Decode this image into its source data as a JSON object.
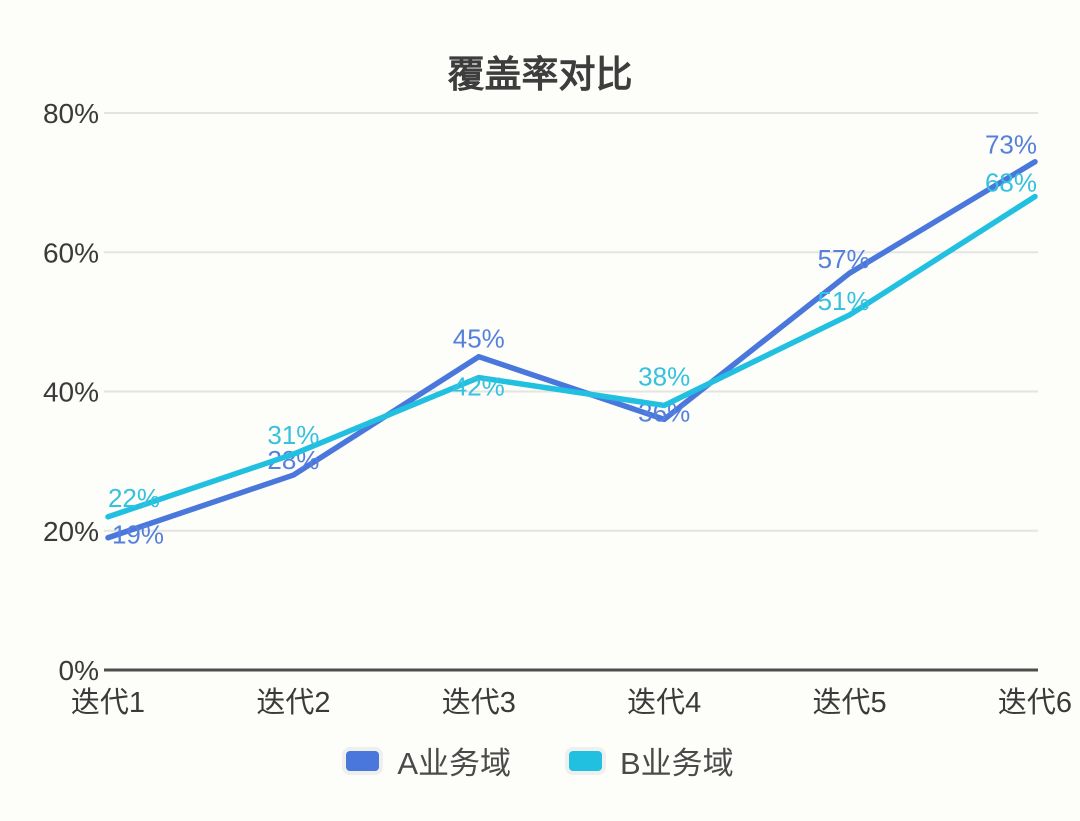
{
  "chart_data": {
    "type": "line",
    "title": "覆盖率对比",
    "categories": [
      "迭代1",
      "迭代2",
      "迭代3",
      "迭代4",
      "迭代5",
      "迭代6"
    ],
    "series": [
      {
        "name": "A业务域",
        "color": "#4A77DB",
        "values": [
          19,
          28,
          45,
          36,
          57,
          73
        ]
      },
      {
        "name": "B业务域",
        "color": "#22C0E0",
        "values": [
          22,
          31,
          42,
          38,
          51,
          68
        ]
      }
    ],
    "xlabel": "",
    "ylabel": "",
    "ylim": [
      0,
      80
    ],
    "y_tick_values": [
      0,
      20,
      40,
      60,
      80
    ],
    "y_tick_suffix": "%",
    "data_label_suffix": "%",
    "grid": "horizontal",
    "legend_position": "bottom"
  },
  "colors": {
    "background": "#FDFDF9",
    "title_text": "#3D3D3D",
    "axis_text": "#3A3A3A",
    "data_label_a": "#5580DC",
    "data_label_b": "#35C2DF",
    "gridline": "#E4E4E0",
    "axis_line": "#4D4D4D"
  }
}
